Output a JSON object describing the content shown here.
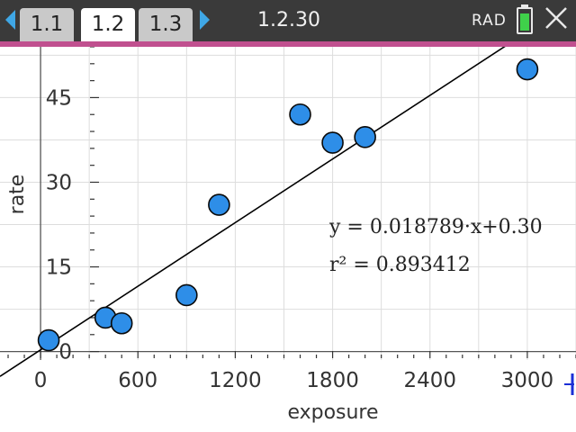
{
  "topbar": {
    "tabs": [
      {
        "label": "1.1"
      },
      {
        "label": "1.2"
      },
      {
        "label": "1.3"
      }
    ],
    "page_number": "1.2.30",
    "angle_mode": "RAD",
    "battery_level": 0.85,
    "colors": {
      "accent_blue": "#3fa7e6",
      "tab_bar": "#3a3a3a",
      "underline": "#c0508f",
      "battery": "#3fd14a"
    }
  },
  "chart_data": {
    "type": "scatter",
    "xlabel": "exposure",
    "ylabel": "rate",
    "x_ticks": [
      "0",
      "600",
      "1200",
      "1800",
      "2400",
      "3000"
    ],
    "y_ticks": [
      "0",
      "15",
      "30",
      "45"
    ],
    "xlim": [
      -250,
      3300
    ],
    "ylim": [
      -1.5,
      54
    ],
    "grid": true,
    "points": [
      {
        "x": 50,
        "y": 2
      },
      {
        "x": 400,
        "y": 6
      },
      {
        "x": 500,
        "y": 5
      },
      {
        "x": 900,
        "y": 10
      },
      {
        "x": 1100,
        "y": 26
      },
      {
        "x": 1600,
        "y": 42
      },
      {
        "x": 1800,
        "y": 37
      },
      {
        "x": 2000,
        "y": 38
      },
      {
        "x": 3000,
        "y": 50
      }
    ],
    "point_color": "#2e8ee8",
    "regression": {
      "slope": 0.018789,
      "intercept": 0.3
    },
    "equation_text": "y = 0.018789·x+0.30",
    "r2_text": "r² = 0.893412"
  }
}
